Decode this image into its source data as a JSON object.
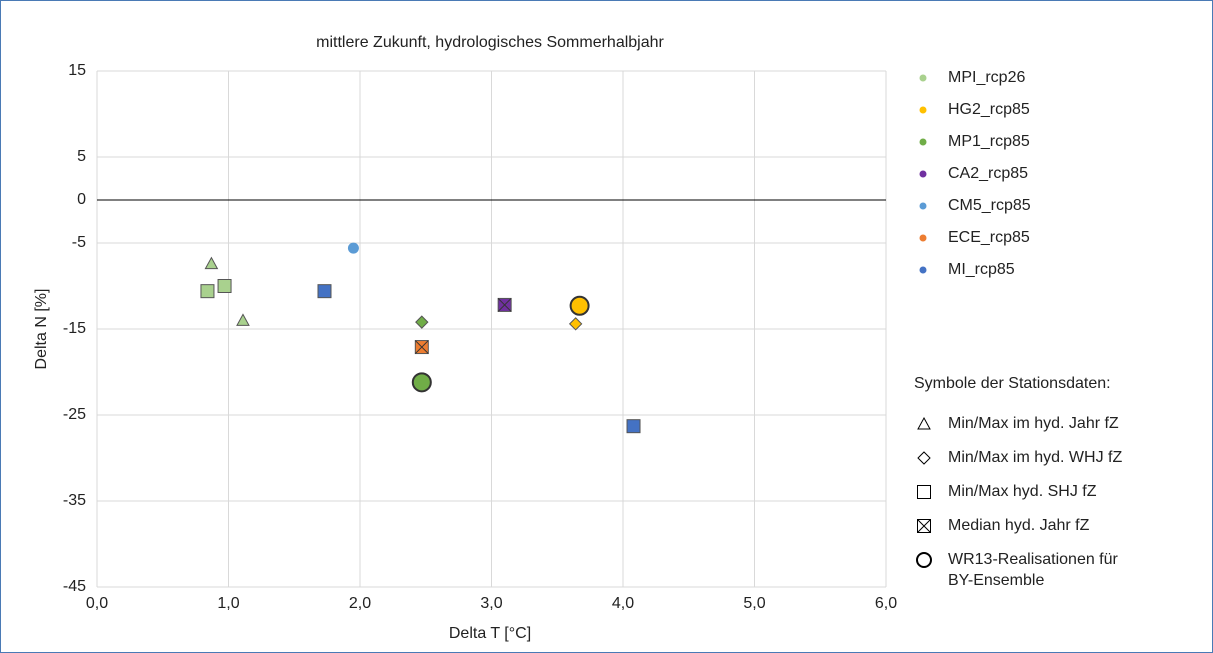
{
  "chart_data": {
    "type": "scatter",
    "title": "mittlere Zukunft, hydrologisches Sommerhalbjahr",
    "xlabel": "Delta T [°C]",
    "ylabel": "Delta N [%]",
    "xlim": [
      0,
      6
    ],
    "ylim": [
      -45,
      15
    ],
    "xticks": [
      {
        "value": 0,
        "label": "0,0"
      },
      {
        "value": 1,
        "label": "1,0"
      },
      {
        "value": 2,
        "label": "2,0"
      },
      {
        "value": 3,
        "label": "3,0"
      },
      {
        "value": 4,
        "label": "4,0"
      },
      {
        "value": 5,
        "label": "5,0"
      },
      {
        "value": 6,
        "label": "6,0"
      }
    ],
    "yticks": [
      15,
      5,
      0,
      -5,
      -15,
      -25,
      -35,
      -45
    ],
    "grid": true,
    "zero_line": true,
    "legend": "right",
    "series": [
      {
        "name": "MPI_rcp26",
        "color": "#a9d18e",
        "points": [
          {
            "x": 0.87,
            "y": -7.4,
            "marker": "triangle"
          },
          {
            "x": 1.11,
            "y": -14.0,
            "marker": "triangle"
          },
          {
            "x": 0.84,
            "y": -10.6,
            "marker": "square"
          },
          {
            "x": 0.97,
            "y": -10.0,
            "marker": "square"
          }
        ]
      },
      {
        "name": "HG2_rcp85",
        "color": "#ffc000",
        "points": [
          {
            "x": 3.67,
            "y": -12.3,
            "marker": "circle"
          },
          {
            "x": 3.64,
            "y": -14.4,
            "marker": "diamond"
          }
        ]
      },
      {
        "name": "MP1_rcp85",
        "color": "#70ad47",
        "points": [
          {
            "x": 2.47,
            "y": -21.2,
            "marker": "circle"
          },
          {
            "x": 2.47,
            "y": -14.2,
            "marker": "diamond"
          }
        ]
      },
      {
        "name": "CA2_rcp85",
        "color": "#7030a0",
        "points": [
          {
            "x": 3.1,
            "y": -12.2,
            "marker": "median"
          }
        ]
      },
      {
        "name": "CM5_rcp85",
        "color": "#5b9bd5",
        "points": [
          {
            "x": 1.95,
            "y": -5.6,
            "marker": "dot"
          }
        ]
      },
      {
        "name": "ECE_rcp85",
        "color": "#ed7d31",
        "points": [
          {
            "x": 2.47,
            "y": -17.1,
            "marker": "median"
          }
        ]
      },
      {
        "name": "MI_rcp85",
        "color": "#4472c4",
        "points": [
          {
            "x": 1.73,
            "y": -10.6,
            "marker": "square"
          },
          {
            "x": 4.08,
            "y": -26.3,
            "marker": "square"
          }
        ]
      }
    ],
    "symbol_legend": {
      "title": "Symbole der Stationsdaten:",
      "items": [
        {
          "marker": "triangle",
          "label": "Min/Max im hyd. Jahr fZ"
        },
        {
          "marker": "diamond",
          "label": "Min/Max im hyd. WHJ fZ"
        },
        {
          "marker": "square",
          "label": "Min/Max hyd. SHJ fZ"
        },
        {
          "marker": "median",
          "label": "Median hyd. Jahr fZ"
        },
        {
          "marker": "circle",
          "label": [
            "WR13-Realisationen für",
            "BY-Ensemble"
          ]
        }
      ]
    }
  }
}
